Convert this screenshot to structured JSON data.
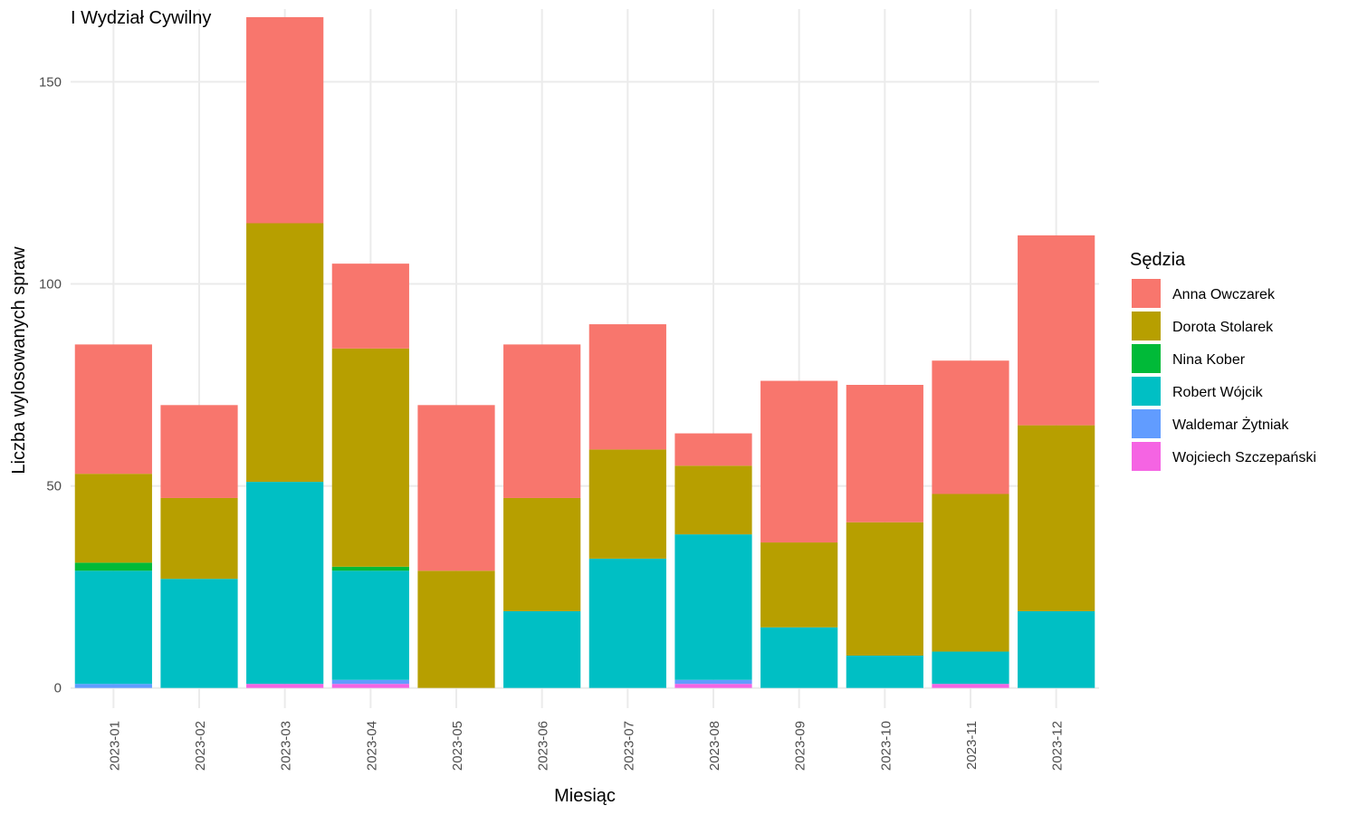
{
  "chart_data": {
    "type": "bar",
    "stacked": true,
    "title": "I Wydział Cywilny",
    "xlabel": "Miesiąc",
    "ylabel": "Liczba wylosowanych spraw",
    "ylim": [
      -5,
      168
    ],
    "yticks": [
      0,
      50,
      100,
      150
    ],
    "grid": true,
    "legend_position": "right",
    "legend_title": "Sędzia",
    "categories": [
      "2023-01",
      "2023-02",
      "2023-03",
      "2023-04",
      "2023-05",
      "2023-06",
      "2023-07",
      "2023-08",
      "2023-09",
      "2023-10",
      "2023-11",
      "2023-12"
    ],
    "series": [
      {
        "name": "Wojciech Szczepański",
        "color": "#F564E3",
        "values": [
          0,
          0,
          1,
          1,
          0,
          0,
          0,
          1,
          0,
          0,
          1,
          0
        ]
      },
      {
        "name": "Waldemar Żytniak",
        "color": "#619CFF",
        "values": [
          1,
          0,
          0,
          1,
          0,
          0,
          0,
          1,
          0,
          0,
          0,
          0
        ]
      },
      {
        "name": "Robert Wójcik",
        "color": "#00BFC4",
        "values": [
          28,
          27,
          50,
          27,
          0,
          19,
          32,
          36,
          15,
          8,
          8,
          19
        ]
      },
      {
        "name": "Nina Kober",
        "color": "#00BA38",
        "values": [
          2,
          0,
          0,
          1,
          0,
          0,
          0,
          0,
          0,
          0,
          0,
          0
        ]
      },
      {
        "name": "Dorota Stolarek",
        "color": "#B79F00",
        "values": [
          22,
          20,
          64,
          54,
          29,
          28,
          27,
          17,
          21,
          33,
          39,
          46
        ]
      },
      {
        "name": "Anna Owczarek",
        "color": "#F8766D",
        "values": [
          32,
          23,
          51,
          21,
          41,
          38,
          31,
          8,
          40,
          34,
          33,
          47
        ]
      }
    ],
    "legend_order": [
      "Anna Owczarek",
      "Dorota Stolarek",
      "Nina Kober",
      "Robert Wójcik",
      "Waldemar Żytniak",
      "Wojciech Szczepański"
    ]
  }
}
